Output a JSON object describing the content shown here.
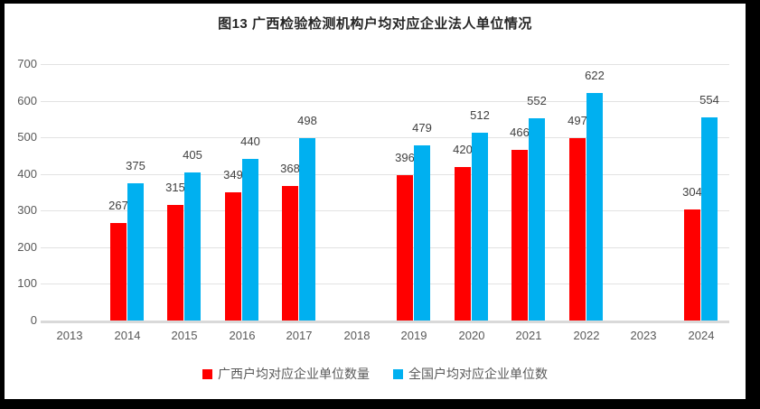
{
  "chart_data": {
    "type": "bar",
    "title": "图13 广西检验检测机构户均对应企业法人单位情况",
    "categories": [
      "2013",
      "2014",
      "2015",
      "2016",
      "2017",
      "2018",
      "2019",
      "2020",
      "2021",
      "2022",
      "2023",
      "2024"
    ],
    "series": [
      {
        "name": "广西户均对应企业单位数量",
        "color": "#ff0000",
        "values": [
          null,
          267,
          315,
          349,
          368,
          null,
          396,
          420,
          466,
          497,
          null,
          304
        ]
      },
      {
        "name": "全国户均对应企业单位数",
        "color": "#00b0f0",
        "values": [
          null,
          375,
          405,
          440,
          498,
          null,
          479,
          512,
          552,
          622,
          null,
          554
        ]
      }
    ],
    "xlabel": "",
    "ylabel": "",
    "ylim": [
      0,
      700
    ],
    "ytick_step": 100,
    "grid": true,
    "legend_position": "bottom",
    "data_labels": true,
    "colors": {
      "grid": "#e2e2e2",
      "axis_line": "#d9d9d9",
      "tick_text": "#595959",
      "value_text": "#404040",
      "title_text": "#262626",
      "frame": "#000000",
      "background": "#ffffff"
    }
  }
}
